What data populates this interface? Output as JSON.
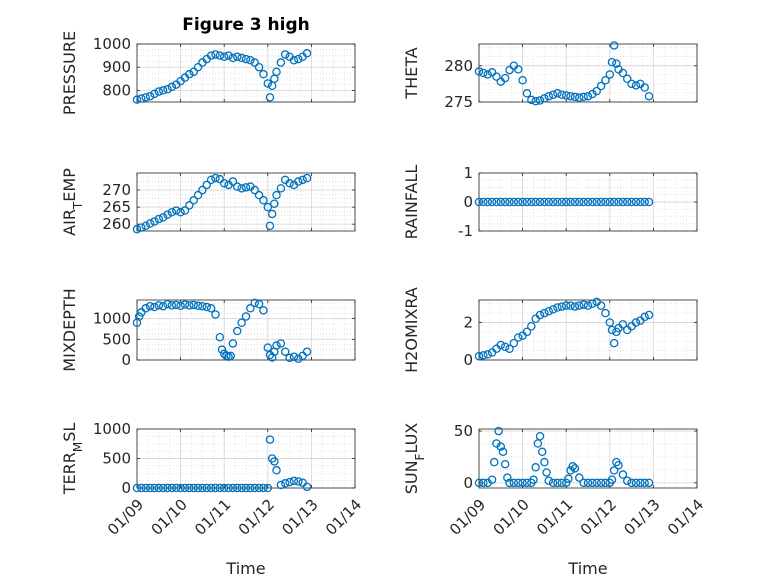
{
  "figure_title": "Figure 3 high",
  "colors": {
    "marker": "#0072BD",
    "grid": "#d9d9d9",
    "axis": "#262626"
  },
  "x_ticks": [
    "01/09",
    "01/10",
    "01/11",
    "01/12",
    "01/13",
    "01/14"
  ],
  "x_label": "Time",
  "chart_data": [
    {
      "type": "scatter",
      "id": "pressure",
      "ylabel": "PRESSURE",
      "ylim": [
        750,
        1000
      ],
      "yticks": [
        800,
        900,
        1000
      ],
      "xlim": [
        9,
        14
      ],
      "x": [
        9.0,
        9.1,
        9.2,
        9.3,
        9.4,
        9.5,
        9.6,
        9.7,
        9.8,
        9.9,
        10.0,
        10.1,
        10.2,
        10.3,
        10.4,
        10.5,
        10.6,
        10.7,
        10.8,
        10.9,
        11.0,
        11.1,
        11.2,
        11.3,
        11.4,
        11.5,
        11.6,
        11.7,
        11.8,
        11.9,
        12.0,
        12.05,
        12.1,
        12.15,
        12.2,
        12.3,
        12.4,
        12.5,
        12.6,
        12.7,
        12.8,
        12.9
      ],
      "y": [
        760,
        765,
        770,
        775,
        785,
        795,
        800,
        805,
        815,
        825,
        840,
        855,
        870,
        880,
        900,
        920,
        935,
        950,
        955,
        950,
        945,
        950,
        940,
        945,
        940,
        935,
        930,
        920,
        900,
        870,
        830,
        770,
        820,
        850,
        880,
        920,
        955,
        945,
        930,
        935,
        945,
        960
      ]
    },
    {
      "type": "scatter",
      "id": "theta",
      "ylabel": "THETA",
      "ylim": [
        275,
        283
      ],
      "yticks": [
        275,
        280
      ],
      "xlim": [
        9,
        14
      ],
      "x": [
        9.0,
        9.1,
        9.2,
        9.3,
        9.4,
        9.5,
        9.6,
        9.7,
        9.8,
        9.9,
        10.0,
        10.1,
        10.2,
        10.3,
        10.4,
        10.5,
        10.6,
        10.7,
        10.8,
        10.9,
        11.0,
        11.1,
        11.2,
        11.3,
        11.4,
        11.5,
        11.6,
        11.7,
        11.8,
        11.9,
        12.0,
        12.05,
        12.1,
        12.15,
        12.2,
        12.3,
        12.4,
        12.5,
        12.6,
        12.7,
        12.8,
        12.9
      ],
      "y": [
        279.2,
        279.0,
        278.8,
        279.1,
        278.5,
        277.8,
        278.3,
        279.4,
        280.0,
        279.5,
        278.0,
        276.2,
        275.3,
        275.1,
        275.2,
        275.5,
        275.8,
        276.0,
        276.2,
        276.0,
        275.9,
        275.8,
        275.7,
        275.6,
        275.7,
        275.8,
        276.1,
        276.5,
        277.2,
        278.0,
        278.8,
        280.5,
        282.8,
        280.3,
        279.5,
        279.0,
        278.2,
        277.5,
        277.3,
        277.5,
        277.0,
        275.8
      ]
    },
    {
      "type": "scatter",
      "id": "airtemp",
      "ylabel": "AIR_TEMP",
      "ylim": [
        258,
        275
      ],
      "yticks": [
        260,
        265,
        270
      ],
      "xlim": [
        9,
        14
      ],
      "x": [
        9.0,
        9.1,
        9.2,
        9.3,
        9.4,
        9.5,
        9.6,
        9.7,
        9.8,
        9.9,
        10.0,
        10.1,
        10.2,
        10.3,
        10.4,
        10.5,
        10.6,
        10.7,
        10.8,
        10.9,
        11.0,
        11.1,
        11.2,
        11.3,
        11.4,
        11.5,
        11.6,
        11.7,
        11.8,
        11.9,
        12.0,
        12.05,
        12.1,
        12.15,
        12.2,
        12.3,
        12.4,
        12.5,
        12.6,
        12.7,
        12.8,
        12.9
      ],
      "y": [
        258.5,
        259.0,
        259.5,
        260.2,
        260.8,
        261.5,
        262.0,
        262.8,
        263.5,
        264.0,
        263.5,
        264.0,
        265.5,
        267.0,
        268.5,
        270.0,
        271.5,
        273.0,
        273.5,
        273.2,
        272.0,
        271.5,
        272.5,
        271.0,
        270.5,
        270.8,
        271.0,
        270.0,
        268.5,
        267.0,
        265.0,
        259.5,
        263.0,
        266.0,
        268.5,
        270.5,
        273.0,
        272.0,
        271.5,
        272.5,
        273.0,
        273.5
      ]
    },
    {
      "type": "scatter",
      "id": "rainfall",
      "ylabel": "RAINFALL",
      "ylim": [
        -1,
        1
      ],
      "yticks": [
        -1,
        0,
        1
      ],
      "xlim": [
        9,
        14
      ],
      "x": [
        9.0,
        9.1,
        9.2,
        9.3,
        9.4,
        9.5,
        9.6,
        9.7,
        9.8,
        9.9,
        10.0,
        10.1,
        10.2,
        10.3,
        10.4,
        10.5,
        10.6,
        10.7,
        10.8,
        10.9,
        11.0,
        11.1,
        11.2,
        11.3,
        11.4,
        11.5,
        11.6,
        11.7,
        11.8,
        11.9,
        12.0,
        12.1,
        12.2,
        12.3,
        12.4,
        12.5,
        12.6,
        12.7,
        12.8,
        12.9
      ],
      "y": [
        0,
        0,
        0,
        0,
        0,
        0,
        0,
        0,
        0,
        0,
        0,
        0,
        0,
        0,
        0,
        0,
        0,
        0,
        0,
        0,
        0,
        0,
        0,
        0,
        0,
        0,
        0,
        0,
        0,
        0,
        0,
        0,
        0,
        0,
        0,
        0,
        0,
        0,
        0,
        0
      ]
    },
    {
      "type": "scatter",
      "id": "mixdepth",
      "ylabel": "MIXDEPTH",
      "ylim": [
        0,
        1450
      ],
      "yticks": [
        0,
        500,
        1000
      ],
      "xlim": [
        9,
        14
      ],
      "x": [
        9.0,
        9.05,
        9.1,
        9.2,
        9.3,
        9.4,
        9.5,
        9.6,
        9.7,
        9.8,
        9.9,
        10.0,
        10.1,
        10.2,
        10.3,
        10.4,
        10.5,
        10.6,
        10.7,
        10.8,
        10.9,
        10.95,
        11.0,
        11.05,
        11.1,
        11.15,
        11.2,
        11.3,
        11.4,
        11.5,
        11.6,
        11.7,
        11.8,
        11.9,
        12.0,
        12.05,
        12.1,
        12.15,
        12.2,
        12.3,
        12.4,
        12.5,
        12.6,
        12.7,
        12.8,
        12.9
      ],
      "y": [
        900,
        1050,
        1150,
        1250,
        1300,
        1280,
        1320,
        1300,
        1350,
        1320,
        1330,
        1310,
        1340,
        1320,
        1330,
        1310,
        1300,
        1280,
        1250,
        1100,
        550,
        250,
        150,
        100,
        80,
        100,
        400,
        700,
        900,
        1050,
        1250,
        1380,
        1350,
        1200,
        300,
        120,
        60,
        200,
        350,
        400,
        200,
        50,
        80,
        30,
        100,
        200
      ]
    },
    {
      "type": "scatter",
      "id": "h2omixra",
      "ylabel": "H2OMIXRA",
      "ylim": [
        0,
        3.2
      ],
      "yticks": [
        0,
        2
      ],
      "xlim": [
        9,
        14
      ],
      "x": [
        9.0,
        9.1,
        9.2,
        9.3,
        9.4,
        9.5,
        9.6,
        9.7,
        9.8,
        9.9,
        10.0,
        10.1,
        10.2,
        10.3,
        10.4,
        10.5,
        10.6,
        10.7,
        10.8,
        10.9,
        11.0,
        11.1,
        11.2,
        11.3,
        11.4,
        11.5,
        11.6,
        11.7,
        11.8,
        11.9,
        12.0,
        12.05,
        12.1,
        12.15,
        12.2,
        12.3,
        12.4,
        12.5,
        12.6,
        12.7,
        12.8,
        12.9
      ],
      "y": [
        0.2,
        0.25,
        0.3,
        0.4,
        0.6,
        0.8,
        0.7,
        0.6,
        0.9,
        1.2,
        1.3,
        1.5,
        1.8,
        2.2,
        2.4,
        2.5,
        2.6,
        2.7,
        2.8,
        2.85,
        2.9,
        2.9,
        2.85,
        2.9,
        2.95,
        2.9,
        3.0,
        3.1,
        2.9,
        2.5,
        2.0,
        1.6,
        0.9,
        1.5,
        1.7,
        1.9,
        1.6,
        1.8,
        2.0,
        2.1,
        2.3,
        2.4
      ]
    },
    {
      "type": "scatter",
      "id": "terrmsl",
      "ylabel": "TERR_MSL",
      "ylim": [
        0,
        1000
      ],
      "yticks": [
        0,
        500,
        1000
      ],
      "xlim": [
        9,
        14
      ],
      "x": [
        9.0,
        9.1,
        9.2,
        9.3,
        9.4,
        9.5,
        9.6,
        9.7,
        9.8,
        9.9,
        10.0,
        10.1,
        10.2,
        10.3,
        10.4,
        10.5,
        10.6,
        10.7,
        10.8,
        10.9,
        11.0,
        11.1,
        11.2,
        11.3,
        11.4,
        11.5,
        11.6,
        11.7,
        11.8,
        11.9,
        12.0,
        12.05,
        12.1,
        12.15,
        12.2,
        12.3,
        12.4,
        12.5,
        12.6,
        12.7,
        12.8,
        12.9
      ],
      "y": [
        0,
        0,
        0,
        0,
        0,
        0,
        0,
        0,
        0,
        0,
        0,
        0,
        0,
        0,
        0,
        0,
        0,
        0,
        0,
        0,
        0,
        0,
        0,
        0,
        0,
        0,
        0,
        0,
        0,
        0,
        0,
        820,
        500,
        450,
        300,
        50,
        80,
        100,
        120,
        110,
        90,
        20
      ]
    },
    {
      "type": "scatter",
      "id": "sunflux",
      "ylabel": "SUN_FLUX",
      "ylim": [
        -5,
        52
      ],
      "yticks": [
        0,
        50
      ],
      "xlim": [
        9,
        14
      ],
      "x": [
        9.0,
        9.1,
        9.2,
        9.3,
        9.35,
        9.4,
        9.45,
        9.5,
        9.55,
        9.6,
        9.65,
        9.7,
        9.8,
        9.9,
        10.0,
        10.1,
        10.2,
        10.25,
        10.3,
        10.35,
        10.4,
        10.45,
        10.5,
        10.55,
        10.6,
        10.7,
        10.8,
        10.9,
        11.0,
        11.05,
        11.1,
        11.15,
        11.2,
        11.3,
        11.4,
        11.5,
        11.6,
        11.7,
        11.8,
        11.9,
        12.0,
        12.05,
        12.1,
        12.15,
        12.2,
        12.3,
        12.4,
        12.5,
        12.6,
        12.7,
        12.8,
        12.9
      ],
      "y": [
        0,
        0,
        0,
        3,
        20,
        38,
        50,
        35,
        30,
        18,
        5,
        0,
        0,
        0,
        0,
        0,
        0,
        3,
        15,
        38,
        45,
        30,
        20,
        10,
        2,
        0,
        0,
        0,
        0,
        4,
        12,
        16,
        14,
        5,
        0,
        0,
        0,
        0,
        0,
        0,
        0,
        3,
        12,
        20,
        17,
        8,
        2,
        0,
        0,
        0,
        0,
        0
      ]
    }
  ]
}
